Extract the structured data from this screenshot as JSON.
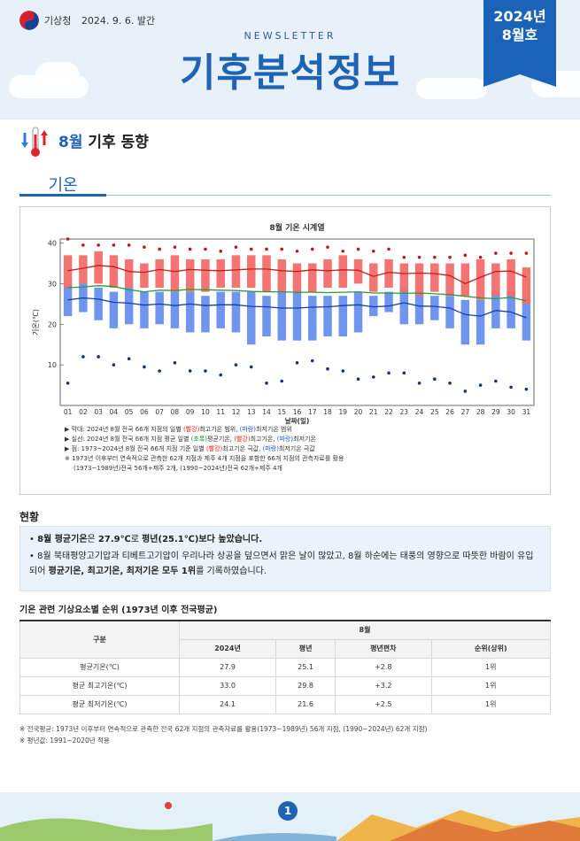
{
  "header": {
    "org": "기상청",
    "date": "2024. 9. 6. 발간",
    "newsletter": "NEWSLETTER",
    "title": "기후분석정보",
    "badge_year": "2024년",
    "badge_issue": "8월호"
  },
  "section": {
    "month": "8월",
    "title_rest": " 기후 동향",
    "tab": "기온"
  },
  "chart_data": {
    "type": "bar",
    "title": "8월 기온 시계열",
    "xlabel": "날짜(일)",
    "ylabel": "기온(℃)",
    "ylim": [
      0,
      41
    ],
    "yticks": [
      "10",
      "20",
      "30",
      "40"
    ],
    "categories": [
      "01",
      "02",
      "03",
      "04",
      "05",
      "06",
      "07",
      "08",
      "09",
      "10",
      "11",
      "12",
      "13",
      "14",
      "15",
      "16",
      "17",
      "18",
      "19",
      "20",
      "21",
      "22",
      "23",
      "24",
      "25",
      "26",
      "27",
      "28",
      "29",
      "30",
      "31"
    ],
    "series": [
      {
        "name": "최고기온 범위(빨강)",
        "low": [
          29,
          30,
          30,
          29,
          29,
          29,
          29,
          28,
          28,
          28,
          29,
          29,
          29,
          28,
          28,
          28,
          28,
          29,
          29,
          30,
          28,
          29,
          28,
          27,
          28,
          27,
          27,
          26,
          27,
          27,
          25
        ],
        "high": [
          37,
          37,
          38,
          37,
          36,
          35,
          36,
          37,
          36,
          36,
          36,
          37,
          37,
          37,
          36,
          35,
          35,
          36,
          37,
          36,
          35,
          36,
          35,
          35,
          35,
          35,
          35,
          36,
          35,
          36,
          34
        ]
      },
      {
        "name": "최저기온 범위(파랑)",
        "low": [
          22,
          23,
          21,
          19,
          20,
          19,
          20,
          19,
          18,
          18,
          19,
          18,
          15,
          17,
          16,
          16,
          16,
          17,
          17,
          18,
          22,
          23,
          20,
          20,
          21,
          19,
          15,
          15,
          19,
          19,
          16
        ],
        "high": [
          30,
          30,
          29,
          28,
          29,
          28,
          28,
          28,
          28,
          27,
          28,
          28,
          28,
          27,
          28,
          28,
          27,
          27,
          27,
          28,
          27,
          28,
          29,
          28,
          27,
          27,
          26,
          26,
          28,
          28,
          26
        ]
      },
      {
        "name": "평균기온(초록)",
        "values": [
          29.0,
          29.2,
          29.5,
          29.3,
          28.5,
          28.0,
          28.4,
          28.3,
          28.6,
          28.5,
          28.4,
          28.3,
          28.1,
          28.0,
          28.0,
          27.9,
          27.9,
          27.8,
          27.9,
          28.0,
          27.7,
          27.7,
          27.6,
          27.7,
          27.5,
          27.3,
          26.9,
          26.5,
          26.3,
          26.6,
          25.8
        ]
      },
      {
        "name": "평균 최고기온(빨강 선)",
        "values": [
          33.2,
          33.8,
          34.5,
          34.2,
          33.0,
          32.8,
          33.5,
          33.0,
          33.5,
          33.3,
          33.2,
          33.4,
          33.6,
          33.6,
          33.2,
          33.0,
          33.4,
          33.2,
          33.4,
          33.3,
          31.8,
          32.8,
          32.5,
          32.6,
          32.5,
          32.0,
          30.0,
          31.6,
          33.0,
          33.1,
          31.6
        ]
      },
      {
        "name": "평균 최저기온(파랑 선)",
        "values": [
          26.0,
          26.5,
          26.2,
          25.4,
          25.2,
          24.7,
          25.0,
          24.6,
          25.0,
          24.6,
          24.8,
          24.8,
          24.4,
          24.3,
          24.0,
          24.0,
          24.2,
          24.3,
          24.6,
          24.8,
          24.3,
          24.5,
          25.3,
          24.5,
          24.4,
          24.0,
          22.4,
          22.0,
          23.4,
          23.0,
          21.6
        ]
      },
      {
        "name": "최고기온 극값(빨강 점)",
        "values": [
          41.0,
          39.5,
          39.5,
          39.5,
          39.5,
          39.0,
          38.5,
          39.0,
          38.5,
          38.5,
          38.0,
          39.0,
          38.5,
          38.5,
          38.5,
          38.0,
          38.5,
          39.0,
          38.0,
          38.5,
          38.0,
          38.5,
          36.5,
          36.5,
          36.5,
          36.5,
          37.0,
          36.5,
          37.5,
          37.5,
          37.5
        ]
      },
      {
        "name": "최저기온 극값(파랑 점)",
        "values": [
          5.5,
          12.0,
          12.0,
          10.0,
          11.5,
          9.5,
          8.5,
          10.5,
          8.5,
          8.5,
          7.5,
          10.0,
          9.5,
          5.5,
          6.0,
          10.5,
          11.0,
          9.0,
          8.5,
          6.5,
          7.0,
          8.0,
          8.0,
          5.5,
          6.5,
          5.5,
          3.5,
          5.0,
          6.0,
          4.5,
          4.0
        ]
      }
    ],
    "notes": [
      {
        "prefix": "▶ 막대: 2024년 8월 전국 66개 지점의 일별 ",
        "red": "(빨강)",
        "mid": "최고기온 범위, ",
        "blue": "(파랑)",
        "suffix": "최저기온 범위"
      },
      {
        "prefix": "▶ 실선: 2024년 8월 전국 66개 지점 평균 일별 ",
        "green": "(초록)",
        "mid": "평균기온, ",
        "red": "(빨강)",
        "mid2": "최고기온, ",
        "blue": "(파랑)",
        "suffix": "최저기온"
      },
      {
        "prefix": "▶ 점: 1973~2024년 8월 전국 66개 지점 기준 일별 ",
        "red": "(빨강)",
        "mid": "최고기온 극값, ",
        "blue": "(파랑)",
        "suffix": "최저기온 극값"
      }
    ],
    "footnote1": "※ 1973년 이후부터 연속적으로 관측한 62개 지점과 제주 4개 지점을 포함한 66개 지점의 관측자료를 활용",
    "footnote2": "(1973~1989년)전국 56개+제주 2개, (1990~2024년)전국 62개+제주 4개"
  },
  "status": {
    "heading": "현황",
    "item1_a": "8월 평균기온",
    "item1_b": "은 ",
    "item1_c": "27.9℃",
    "item1_d": "로 ",
    "item1_e": "평년(25.1℃)보다 높았습니다.",
    "item2_a": "8월 북태평양고기압과 티베트고기압이 우리나라 상공을 덮으면서 맑은 날이 많았고, 8월 하순에는 태풍의 영향으로 따뜻한 바람이 유입되어 ",
    "item2_b": "평균기온, 최고기온, 최저기온 모두 1위",
    "item2_c": "를 기록하였습니다."
  },
  "table": {
    "heading": "기온 관련 기상요소별 순위 (1973년 이후 전국평균)",
    "col_group": "구분",
    "month": "8월",
    "cols": [
      "2024년",
      "평년",
      "평년편차",
      "순위(상위)"
    ],
    "rows": [
      {
        "name": "평균기온(℃)",
        "cells": [
          "27.9",
          "25.1",
          "+2.8",
          "1위"
        ]
      },
      {
        "name": "평균 최고기온(℃)",
        "cells": [
          "33.0",
          "29.8",
          "+3.2",
          "1위"
        ]
      },
      {
        "name": "평균 최저기온(℃)",
        "cells": [
          "24.1",
          "21.6",
          "+2.5",
          "1위"
        ]
      }
    ],
    "note1": "※ 전국평균: 1973년 이후부터 연속적으로 관측한 전국 62개 지점의 관측자료를 활용(1973~1989년) 56개 지점, (1990~2024년) 62개 지점)",
    "note2": "※ 평년값: 1991~2020년 적용"
  },
  "footer": {
    "page": "1"
  }
}
